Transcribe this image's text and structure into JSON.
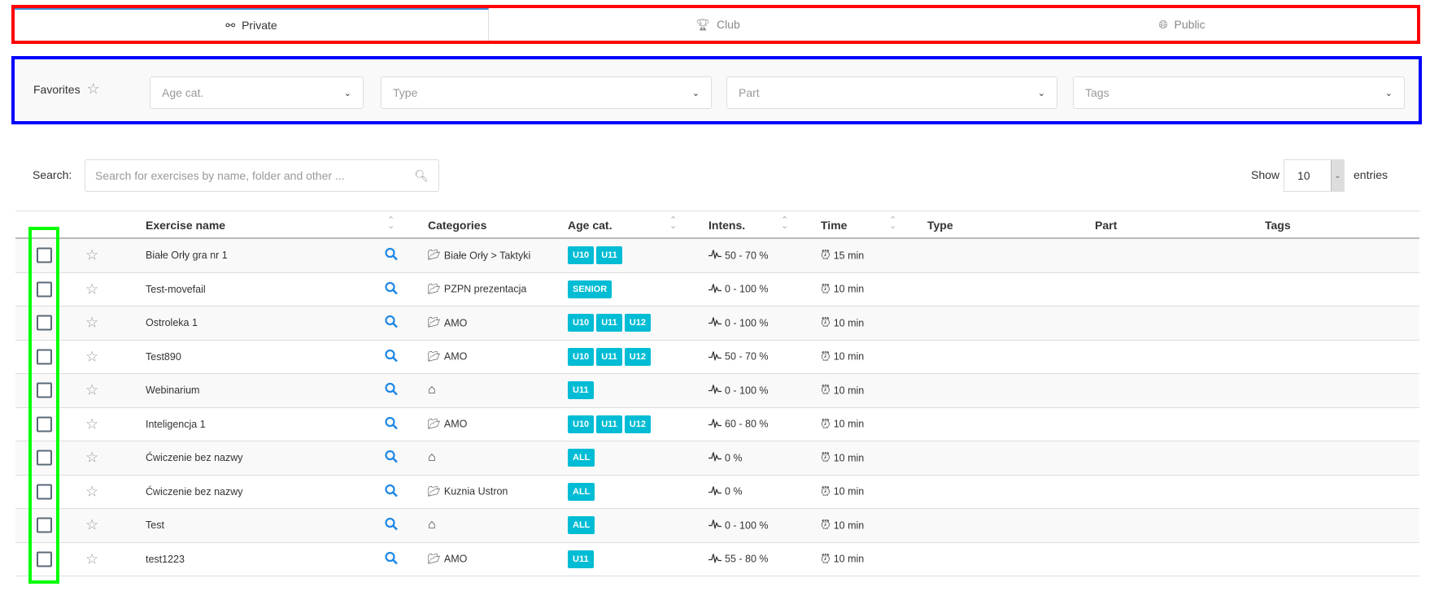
{
  "tabs": [
    {
      "label": "Private",
      "icon": "tactics-icon",
      "active": true
    },
    {
      "label": "Club",
      "icon": "trophy-icon"
    },
    {
      "label": "Public",
      "icon": "globe-icon"
    }
  ],
  "filters": {
    "favorites_label": "Favorites",
    "age_placeholder": "Age cat.",
    "type_placeholder": "Type",
    "part_placeholder": "Part",
    "tags_placeholder": "Tags"
  },
  "search": {
    "label": "Search:",
    "placeholder": "Search for exercises by name, folder and other ..."
  },
  "length": {
    "show": "Show",
    "value": "10",
    "entries": "entries"
  },
  "columns": {
    "name": "Exercise name",
    "categories": "Categories",
    "age": "Age cat.",
    "intens": "Intens.",
    "time": "Time",
    "type": "Type",
    "part": "Part",
    "tags": "Tags"
  },
  "colors": {
    "badge": "#00bcd4",
    "accent": "#1e88e5"
  },
  "rows": [
    {
      "name": "Białe Orły gra nr 1",
      "cat_icon": "folder",
      "category": "Białe Orły > Taktyki",
      "ages": [
        "U10",
        "U11"
      ],
      "intens": "50 - 70 %",
      "time": "15 min"
    },
    {
      "name": "Test-movefail",
      "cat_icon": "folder",
      "category": "PZPN prezentacja",
      "ages": [
        "SENIOR"
      ],
      "intens": "0 - 100 %",
      "time": "10 min"
    },
    {
      "name": "Ostroleka 1",
      "cat_icon": "folder",
      "category": "AMO",
      "ages": [
        "U10",
        "U11",
        "U12"
      ],
      "intens": "0 - 100 %",
      "time": "10 min"
    },
    {
      "name": "Test890",
      "cat_icon": "folder",
      "category": "AMO",
      "ages": [
        "U10",
        "U11",
        "U12"
      ],
      "intens": "50 - 70 %",
      "time": "10 min"
    },
    {
      "name": "Webinarium",
      "cat_icon": "home",
      "category": "",
      "ages": [
        "U11"
      ],
      "intens": "0 - 100 %",
      "time": "10 min"
    },
    {
      "name": "Inteligencja 1",
      "cat_icon": "folder",
      "category": "AMO",
      "ages": [
        "U10",
        "U11",
        "U12"
      ],
      "intens": "60 - 80 %",
      "time": "10 min"
    },
    {
      "name": "Ćwiczenie bez nazwy",
      "cat_icon": "home",
      "category": "",
      "ages": [
        "ALL"
      ],
      "intens": "0 %",
      "time": "10 min"
    },
    {
      "name": "Ćwiczenie bez nazwy",
      "cat_icon": "folder",
      "category": "Kuznia Ustron",
      "ages": [
        "ALL"
      ],
      "intens": "0 %",
      "time": "10 min"
    },
    {
      "name": "Test",
      "cat_icon": "home",
      "category": "",
      "ages": [
        "ALL"
      ],
      "intens": "0 - 100 %",
      "time": "10 min"
    },
    {
      "name": "test1223",
      "cat_icon": "folder",
      "category": "AMO",
      "ages": [
        "U11"
      ],
      "intens": "55 - 80 %",
      "time": "10 min"
    }
  ]
}
